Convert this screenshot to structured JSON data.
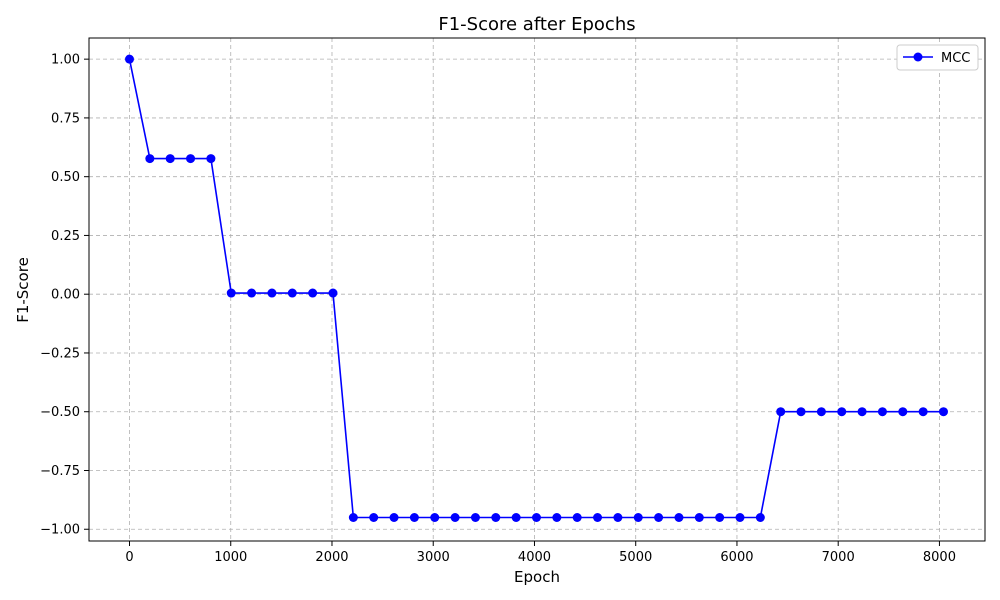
{
  "chart_data": {
    "type": "line",
    "title": "F1-Score after Epochs",
    "xlabel": "Epoch",
    "ylabel": "F1-Score",
    "xlim": [
      -400,
      8450
    ],
    "ylim": [
      -1.05,
      1.09
    ],
    "xticks": [
      0,
      1000,
      2000,
      3000,
      4000,
      5000,
      6000,
      7000,
      8000
    ],
    "yticks": [
      -1.0,
      -0.75,
      -0.5,
      -0.25,
      0.0,
      0.25,
      0.5,
      0.75,
      1.0
    ],
    "xtick_labels": [
      "0",
      "1000",
      "2000",
      "3000",
      "4000",
      "5000",
      "6000",
      "7000",
      "8000"
    ],
    "ytick_labels": [
      "−1.00",
      "−0.75",
      "−0.50",
      "−0.25",
      "0.00",
      "0.25",
      "0.50",
      "0.75",
      "1.00"
    ],
    "grid": true,
    "legend_position": "top-right",
    "color": "#0000ff",
    "series": [
      {
        "name": "MCC",
        "x": [
          0,
          201,
          402,
          603,
          804,
          1005,
          1206,
          1407,
          1608,
          1809,
          2010,
          2211,
          2412,
          2613,
          2814,
          3015,
          3216,
          3417,
          3618,
          3819,
          4020,
          4221,
          4422,
          4623,
          4824,
          5025,
          5226,
          5427,
          5628,
          5829,
          6030,
          6231,
          6432,
          6633,
          6834,
          7035,
          7236,
          7437,
          7638,
          7839,
          8040
        ],
        "y": [
          1.0,
          0.577,
          0.577,
          0.577,
          0.577,
          0.005,
          0.005,
          0.005,
          0.005,
          0.005,
          0.005,
          -0.95,
          -0.95,
          -0.95,
          -0.95,
          -0.95,
          -0.95,
          -0.95,
          -0.95,
          -0.95,
          -0.95,
          -0.95,
          -0.95,
          -0.95,
          -0.95,
          -0.95,
          -0.95,
          -0.95,
          -0.95,
          -0.95,
          -0.95,
          -0.95,
          -0.5,
          -0.5,
          -0.5,
          -0.5,
          -0.5,
          -0.5,
          -0.5,
          -0.5,
          -0.5
        ]
      }
    ]
  }
}
